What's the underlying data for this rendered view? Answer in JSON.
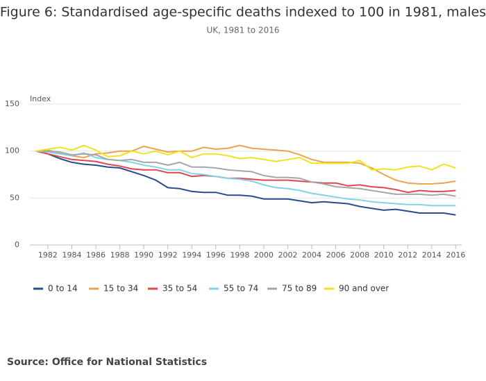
{
  "chart_data": {
    "type": "line",
    "title": "Figure 6: Standardised age-specific deaths indexed to 100 in 1981, males",
    "subtitle": "UK, 1981 to 2016",
    "y_label": "Index",
    "source": "Source: Office for National Statistics",
    "x": [
      1981,
      1982,
      1983,
      1984,
      1985,
      1986,
      1987,
      1988,
      1989,
      1990,
      1991,
      1992,
      1993,
      1994,
      1995,
      1996,
      1997,
      1998,
      1999,
      2000,
      2001,
      2002,
      2003,
      2004,
      2005,
      2006,
      2007,
      2008,
      2009,
      2010,
      2011,
      2012,
      2013,
      2014,
      2015,
      2016
    ],
    "xlim": [
      1980.5,
      2016.5
    ],
    "xticks": [
      1982,
      1984,
      1986,
      1988,
      1990,
      1992,
      1994,
      1996,
      1998,
      2000,
      2002,
      2004,
      2006,
      2008,
      2010,
      2012,
      2014,
      2016
    ],
    "ylim": [
      0,
      150
    ],
    "yticks": [
      0,
      50,
      100,
      150
    ],
    "grid": true,
    "series": [
      {
        "name": "0 to 14",
        "color": "#2a4a8c",
        "values": [
          100,
          97,
          92,
          88,
          86,
          85,
          83,
          82,
          78,
          74,
          69,
          61,
          60,
          57,
          56,
          56,
          53,
          53,
          52,
          49,
          49,
          49,
          47,
          45,
          46,
          45,
          44,
          41,
          39,
          37,
          38,
          36,
          34,
          34,
          34,
          32
        ]
      },
      {
        "name": "15 to 34",
        "color": "#f1a14b",
        "values": [
          100,
          101,
          98,
          95,
          93,
          97,
          98,
          100,
          100,
          105,
          102,
          99,
          100,
          100,
          104,
          102,
          103,
          106,
          103,
          102,
          101,
          100,
          96,
          91,
          88,
          88,
          88,
          87,
          82,
          75,
          69,
          66,
          65,
          65,
          66,
          68
        ]
      },
      {
        "name": "35 to 54",
        "color": "#e0474c",
        "values": [
          100,
          97,
          94,
          91,
          90,
          89,
          86,
          84,
          81,
          80,
          80,
          77,
          77,
          73,
          74,
          73,
          71,
          71,
          70,
          69,
          69,
          69,
          68,
          67,
          66,
          66,
          63,
          64,
          62,
          61,
          59,
          56,
          58,
          57,
          57,
          58
        ]
      },
      {
        "name": "55 to 74",
        "color": "#82d2e8",
        "values": [
          100,
          99,
          97,
          95,
          98,
          93,
          91,
          90,
          88,
          85,
          83,
          80,
          80,
          76,
          75,
          73,
          71,
          70,
          68,
          64,
          61,
          60,
          58,
          55,
          53,
          51,
          49,
          48,
          46,
          45,
          44,
          43,
          43,
          42,
          42,
          42
        ]
      },
      {
        "name": "75 to 89",
        "color": "#a6a6a6",
        "values": [
          100,
          100,
          99,
          96,
          97,
          96,
          91,
          90,
          91,
          88,
          88,
          85,
          88,
          83,
          83,
          82,
          80,
          79,
          78,
          74,
          72,
          72,
          71,
          67,
          65,
          62,
          61,
          60,
          58,
          56,
          54,
          54,
          54,
          53,
          54,
          52
        ]
      },
      {
        "name": "90 and over",
        "color": "#efe31e",
        "values": [
          100,
          102,
          104,
          101,
          106,
          101,
          94,
          95,
          100,
          97,
          100,
          96,
          100,
          93,
          97,
          97,
          95,
          92,
          93,
          91,
          89,
          91,
          93,
          87,
          87,
          87,
          87,
          90,
          80,
          81,
          80,
          83,
          84,
          80,
          86,
          82
        ]
      }
    ]
  }
}
